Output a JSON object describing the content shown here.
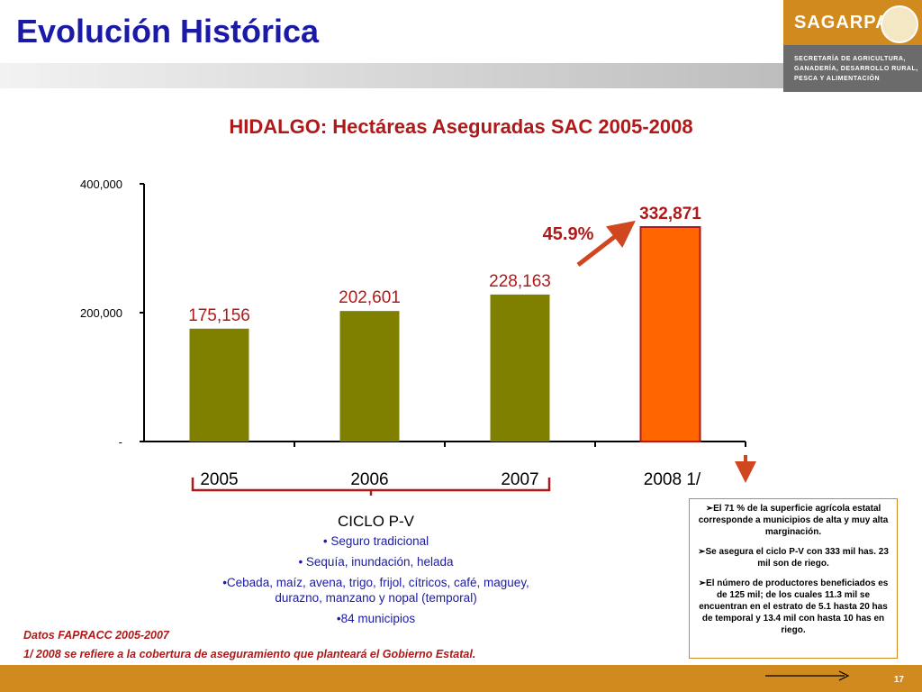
{
  "header": {
    "title": "Evolución Histórica"
  },
  "logo": {
    "word": "SAGARPA",
    "subtitle": "SECRETARÍA DE AGRICULTURA, GANADERÍA, DESARROLLO RURAL, PESCA Y ALIMENTACIÓN"
  },
  "colors": {
    "bar_olive": "#808000",
    "bar_orange": "#ff6600",
    "accent_red": "#b01919",
    "arrow": "#d0461e",
    "brand_orange": "#d08a1e",
    "title_blue": "#1a1aa6"
  },
  "chart_data": {
    "type": "bar",
    "title": "HIDALGO: Hectáreas Aseguradas SAC 2005-2008",
    "categories": [
      "2005",
      "2006",
      "2007",
      "2008 1/"
    ],
    "values": [
      175156,
      202601,
      228163,
      332871
    ],
    "value_labels": [
      "175,156",
      "202,601",
      "228,163",
      "332,871"
    ],
    "yticks": [
      "-",
      "200,000",
      "400,000"
    ],
    "ylim": [
      0,
      400000
    ],
    "growth_label": "45.9%"
  },
  "ciclo": {
    "heading": "CICLO P-V",
    "items": [
      "• Seguro tradicional",
      "• Sequía, inundación, helada",
      "•Cebada, maíz, avena, trigo, frijol, cítricos, café, maguey, durazno, manzano y nopal (temporal)",
      "•84 municipios"
    ]
  },
  "info": {
    "p1": "El 71 % de la superficie agrícola estatal corresponde a municipios de alta y muy alta marginación.",
    "p2": "Se asegura el ciclo P-V con 333 mil has. 23 mil son de riego.",
    "p3": "El número de productores beneficiados es de 125 mil; de los cuales 11.3 mil se encuentran en el estrato de 5.1 hasta 20 has de temporal y 13.4 mil con hasta 10 has en riego."
  },
  "notes": {
    "source": "Datos FAPRACC 2005-2007",
    "footnote": "1/ 2008 se refiere a la cobertura  de aseguramiento que planteará el  Gobierno Estatal."
  },
  "footer": {
    "page": "17"
  }
}
